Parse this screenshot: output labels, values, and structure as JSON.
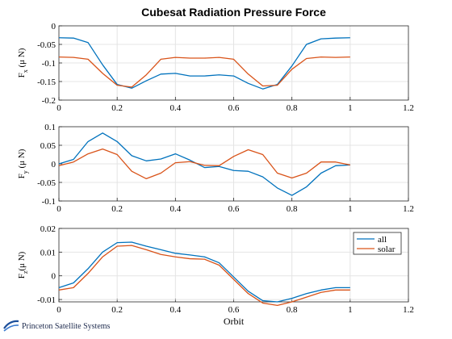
{
  "chart_data": [
    {
      "type": "line",
      "title": "Cubesat Radiation Pressure Force",
      "ylabel_main": "F",
      "ylabel_sub": "x",
      "ylabel_unit": " (μ N)",
      "xlabel": "",
      "xlim": [
        0,
        1.2
      ],
      "ylim": [
        -0.2,
        0
      ],
      "xticks": [
        "0",
        "0.2",
        "0.4",
        "0.6",
        "0.8",
        "1",
        "1.2"
      ],
      "yticks": [
        "-0.2",
        "-0.15",
        "-0.1",
        "-0.05",
        "0"
      ],
      "x": [
        0,
        0.05,
        0.1,
        0.15,
        0.2,
        0.25,
        0.3,
        0.35,
        0.4,
        0.45,
        0.5,
        0.55,
        0.6,
        0.65,
        0.7,
        0.75,
        0.8,
        0.85,
        0.9,
        0.95,
        1.0
      ],
      "series": [
        {
          "name": "all",
          "color": "#0072BD",
          "values": [
            -0.032,
            -0.033,
            -0.045,
            -0.105,
            -0.158,
            -0.168,
            -0.148,
            -0.13,
            -0.128,
            -0.135,
            -0.135,
            -0.132,
            -0.135,
            -0.155,
            -0.17,
            -0.158,
            -0.108,
            -0.05,
            -0.035,
            -0.033,
            -0.032
          ]
        },
        {
          "name": "solar",
          "color": "#D95319",
          "values": [
            -0.084,
            -0.085,
            -0.09,
            -0.128,
            -0.16,
            -0.165,
            -0.132,
            -0.09,
            -0.085,
            -0.087,
            -0.087,
            -0.085,
            -0.09,
            -0.13,
            -0.162,
            -0.16,
            -0.117,
            -0.088,
            -0.084,
            -0.085,
            -0.084
          ]
        }
      ]
    },
    {
      "type": "line",
      "ylabel_main": "F",
      "ylabel_sub": "y",
      "ylabel_unit": " (μ N)",
      "xlabel": "",
      "xlim": [
        0,
        1.2
      ],
      "ylim": [
        -0.1,
        0.1
      ],
      "xticks": [
        "0",
        "0.2",
        "0.4",
        "0.6",
        "0.8",
        "1",
        "1.2"
      ],
      "yticks": [
        "-0.1",
        "-0.05",
        "0",
        "0.05",
        "0.1"
      ],
      "x": [
        0,
        0.05,
        0.1,
        0.15,
        0.2,
        0.25,
        0.3,
        0.35,
        0.4,
        0.45,
        0.5,
        0.55,
        0.6,
        0.65,
        0.7,
        0.75,
        0.8,
        0.85,
        0.9,
        0.95,
        1.0
      ],
      "series": [
        {
          "name": "all",
          "color": "#0072BD",
          "values": [
            0,
            0.012,
            0.06,
            0.083,
            0.06,
            0.022,
            0.008,
            0.013,
            0.027,
            0.01,
            -0.01,
            -0.007,
            -0.018,
            -0.02,
            -0.035,
            -0.065,
            -0.085,
            -0.062,
            -0.025,
            -0.005,
            -0.003
          ]
        },
        {
          "name": "solar",
          "color": "#D95319",
          "values": [
            -0.005,
            0.005,
            0.027,
            0.04,
            0.025,
            -0.02,
            -0.04,
            -0.025,
            0.003,
            0.006,
            -0.004,
            -0.005,
            0.02,
            0.038,
            0.025,
            -0.025,
            -0.038,
            -0.025,
            0.005,
            0.005,
            -0.003
          ]
        }
      ]
    },
    {
      "type": "line",
      "ylabel_main": "F",
      "ylabel_sub": "z",
      "ylabel_unit": "(μ N)",
      "xlabel": "Orbit",
      "xlim": [
        0,
        1.2
      ],
      "ylim": [
        -0.011,
        0.02
      ],
      "xticks": [
        "0",
        "0.2",
        "0.4",
        "0.6",
        "0.8",
        "1",
        "1.2"
      ],
      "yticks": [
        "-0.01",
        "0",
        "0.01",
        "0.02"
      ],
      "ytick_values": [
        -0.01,
        0,
        0.01,
        0.02
      ],
      "legend": [
        "all",
        "solar"
      ],
      "legend_position": "top-right",
      "x": [
        0,
        0.05,
        0.1,
        0.15,
        0.2,
        0.25,
        0.3,
        0.35,
        0.4,
        0.45,
        0.5,
        0.55,
        0.6,
        0.65,
        0.7,
        0.75,
        0.8,
        0.85,
        0.9,
        0.95,
        1.0
      ],
      "series": [
        {
          "name": "all",
          "color": "#0072BD",
          "values": [
            -0.005,
            -0.003,
            0.003,
            0.01,
            0.014,
            0.0142,
            0.0125,
            0.011,
            0.0095,
            0.0088,
            0.008,
            0.0055,
            -0.0005,
            -0.0065,
            -0.0105,
            -0.011,
            -0.0095,
            -0.0075,
            -0.006,
            -0.005,
            -0.005
          ]
        },
        {
          "name": "solar",
          "color": "#D95319",
          "values": [
            -0.006,
            -0.005,
            0.001,
            0.008,
            0.0125,
            0.0128,
            0.011,
            0.009,
            0.008,
            0.0072,
            0.007,
            0.0045,
            -0.0015,
            -0.0075,
            -0.0115,
            -0.0125,
            -0.011,
            -0.009,
            -0.007,
            -0.006,
            -0.006
          ]
        }
      ]
    }
  ],
  "logo": {
    "text": "Princeton Satellite Systems"
  }
}
